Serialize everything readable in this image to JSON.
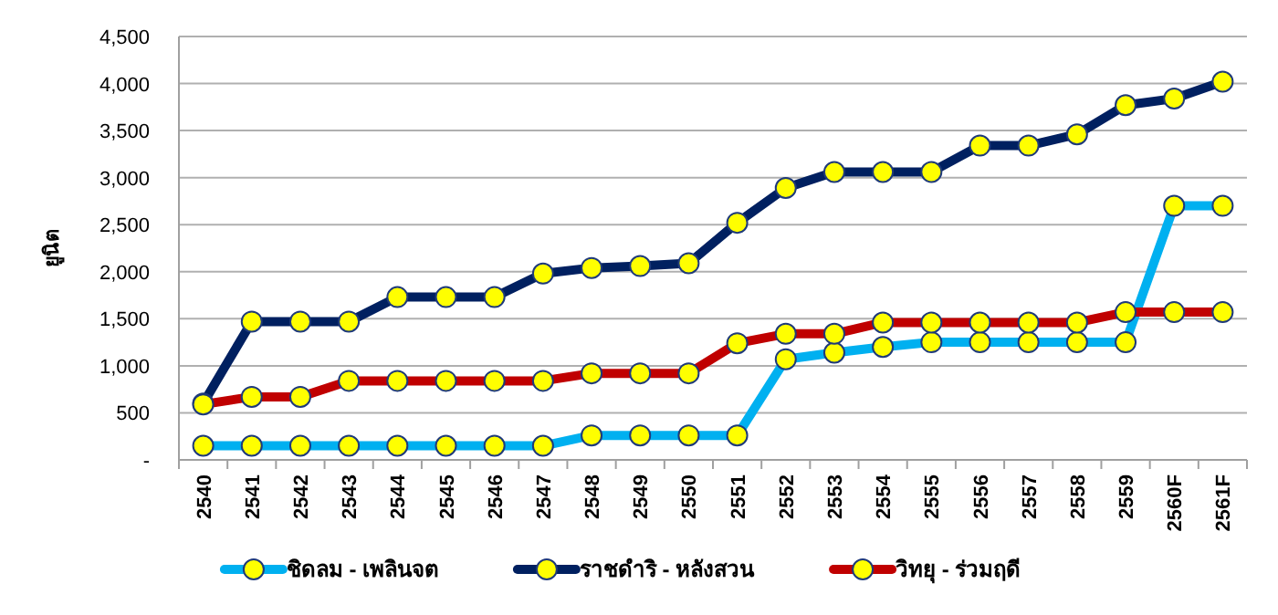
{
  "chart_data": {
    "type": "line",
    "ylabel": "ยูนิต",
    "categories": [
      "2540",
      "2541",
      "2542",
      "2543",
      "2544",
      "2545",
      "2546",
      "2547",
      "2548",
      "2549",
      "2550",
      "2551",
      "2552",
      "2553",
      "2554",
      "2555",
      "2556",
      "2557",
      "2558",
      "2559",
      "2560F",
      "2561F"
    ],
    "series": [
      {
        "name": "ชิดลม - เพลินจต",
        "color": "#00b0f0",
        "values": [
          150,
          150,
          150,
          150,
          150,
          150,
          150,
          150,
          260,
          260,
          260,
          260,
          1070,
          1140,
          1200,
          1250,
          1250,
          1250,
          1250,
          1250,
          2700,
          2700
        ]
      },
      {
        "name": "ราชดำริ - หลังสวน",
        "color": "#002060",
        "values": [
          600,
          1470,
          1470,
          1470,
          1730,
          1730,
          1730,
          1980,
          2040,
          2060,
          2090,
          2520,
          2890,
          3060,
          3060,
          3060,
          3340,
          3340,
          3460,
          3770,
          3840,
          4020
        ]
      },
      {
        "name": "วิทยุ - ร่วมฤดี",
        "color": "#c00000",
        "values": [
          590,
          670,
          670,
          840,
          840,
          840,
          840,
          840,
          920,
          920,
          920,
          1240,
          1340,
          1340,
          1460,
          1460,
          1460,
          1460,
          1460,
          1570,
          1570,
          1570
        ]
      }
    ],
    "ylim": [
      0,
      4500
    ],
    "yticks": [
      {
        "value": 0,
        "label": "-"
      },
      500,
      {
        "value": 1000,
        "label": "1,000"
      },
      {
        "value": 1500,
        "label": "1,500"
      },
      {
        "value": 2000,
        "label": "2,000"
      },
      {
        "value": 2500,
        "label": "2,500"
      },
      {
        "value": 3000,
        "label": "3,000"
      },
      {
        "value": 3500,
        "label": "3,500"
      },
      {
        "value": 4000,
        "label": "4,000"
      },
      {
        "value": 4500,
        "label": "4,500"
      }
    ],
    "grid": "y",
    "legend": "bottom",
    "marker": "circle",
    "line_style": "solid"
  }
}
